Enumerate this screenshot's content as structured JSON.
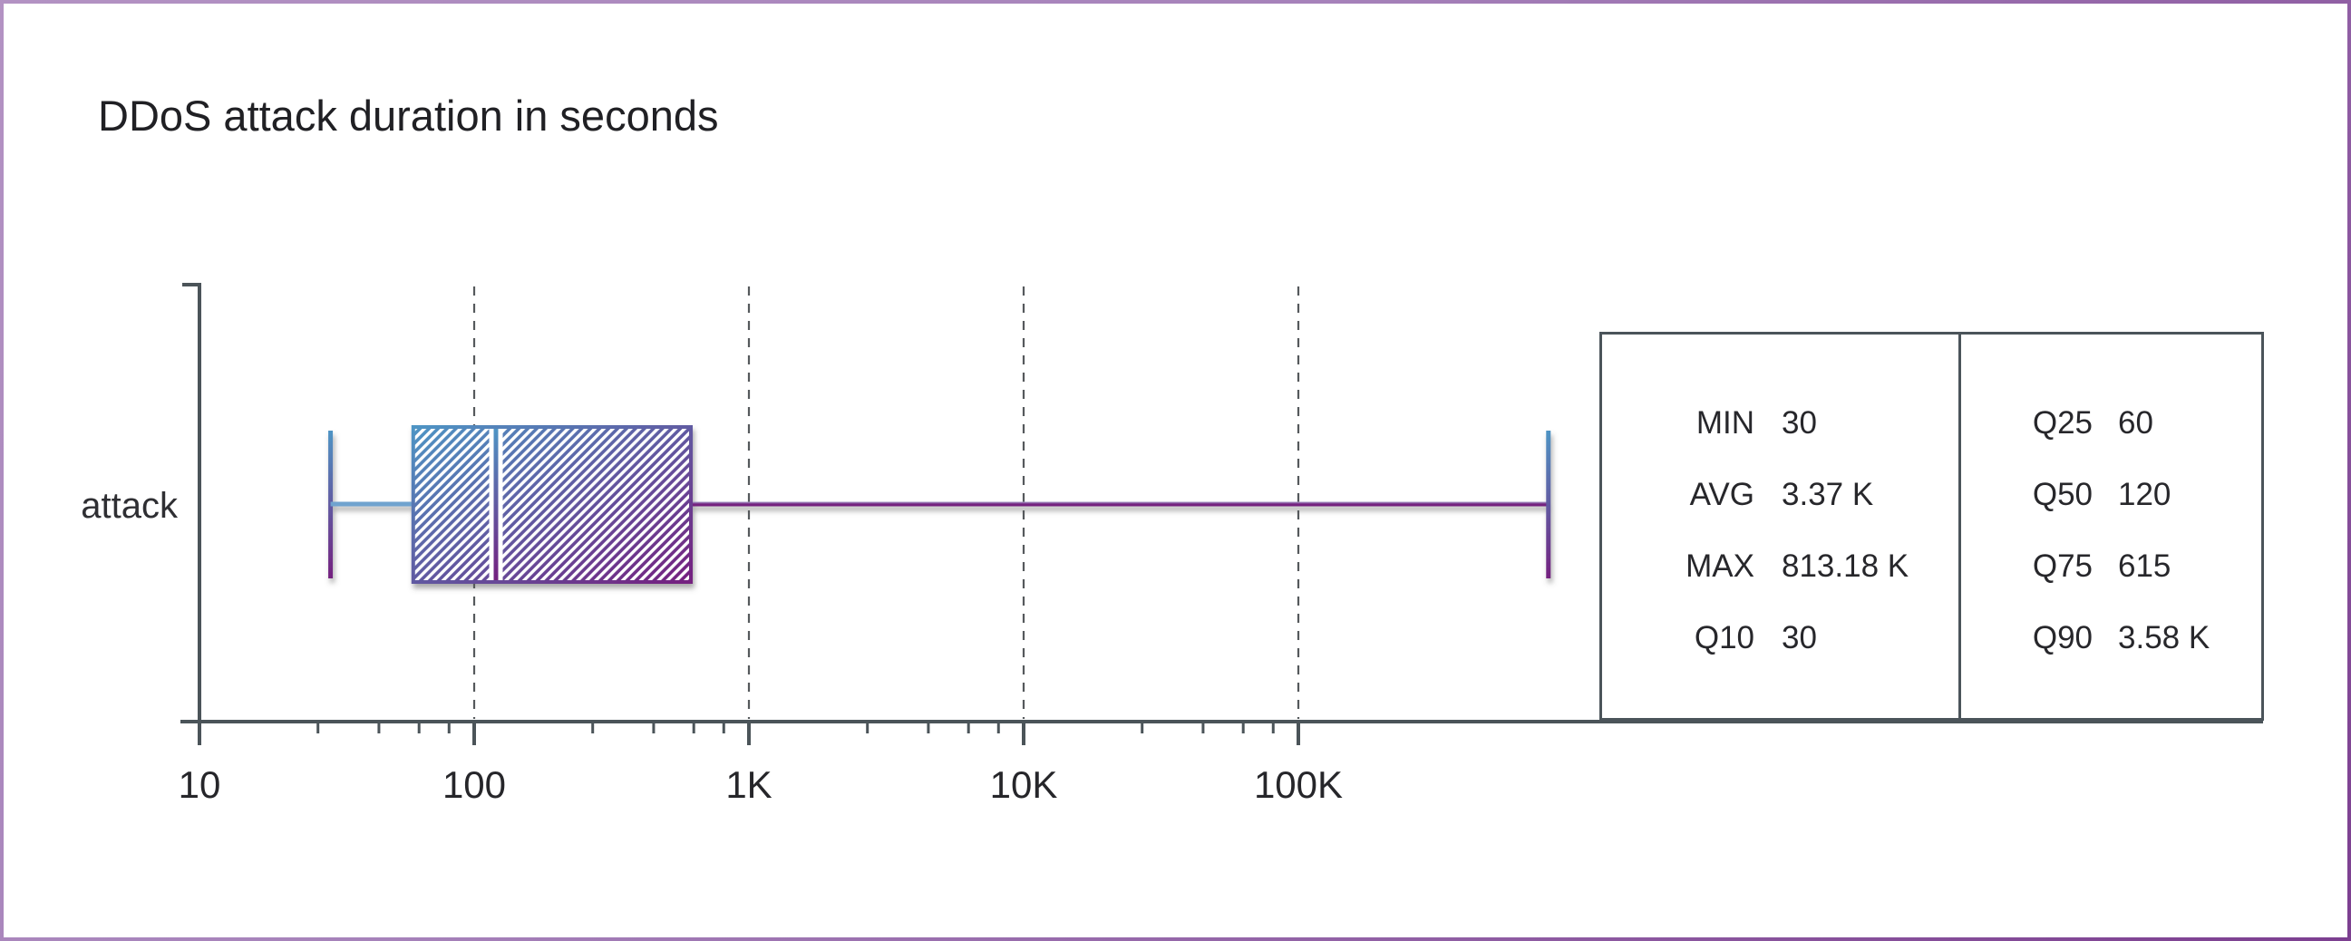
{
  "title": "DDoS attack duration in seconds",
  "chart_data": {
    "type": "boxplot",
    "orientation": "horizontal",
    "title": "DDoS attack duration in seconds",
    "category_label": "attack",
    "x_axis": {
      "scale": "log",
      "tick_values": [
        10,
        100,
        1000,
        10000,
        100000
      ],
      "tick_labels": [
        "10",
        "100",
        "1K",
        "10K",
        "100K"
      ],
      "minor_tick_multipliers": [
        2.7,
        4.5,
        6.3,
        8.1
      ],
      "gridline_values": [
        100,
        1000,
        10000,
        100000
      ],
      "grid": "dashed-vertical",
      "range_min": 10
    },
    "series": [
      {
        "name": "attack",
        "min": 30,
        "q10": 30,
        "q25": 60,
        "median": 120,
        "q75": 615,
        "q90": 3580,
        "avg": 3370,
        "max": 813180
      }
    ]
  },
  "stats_table": {
    "columns": [
      {
        "rows": [
          {
            "label": "MIN",
            "value": "30"
          },
          {
            "label": "AVG",
            "value": "3.37 K"
          },
          {
            "label": "MAX",
            "value": "813.18 K"
          },
          {
            "label": "Q10",
            "value": "30"
          }
        ]
      },
      {
        "rows": [
          {
            "label": "Q25",
            "value": "60"
          },
          {
            "label": "Q50",
            "value": "120"
          },
          {
            "label": "Q75",
            "value": "615"
          },
          {
            "label": "Q90",
            "value": "3.58 K"
          }
        ]
      }
    ]
  },
  "colors": {
    "box_blue": "#4E94C4",
    "box_purple": "#74207F",
    "whisker_blue": "#6FA3CF",
    "whisker_lavender": "#a9a6ce",
    "axis": "#4b5459",
    "grid": "#55595c",
    "text": "#26262a",
    "frame_border_light": "#b392c3",
    "frame_border_dark": "#7c3f90"
  }
}
